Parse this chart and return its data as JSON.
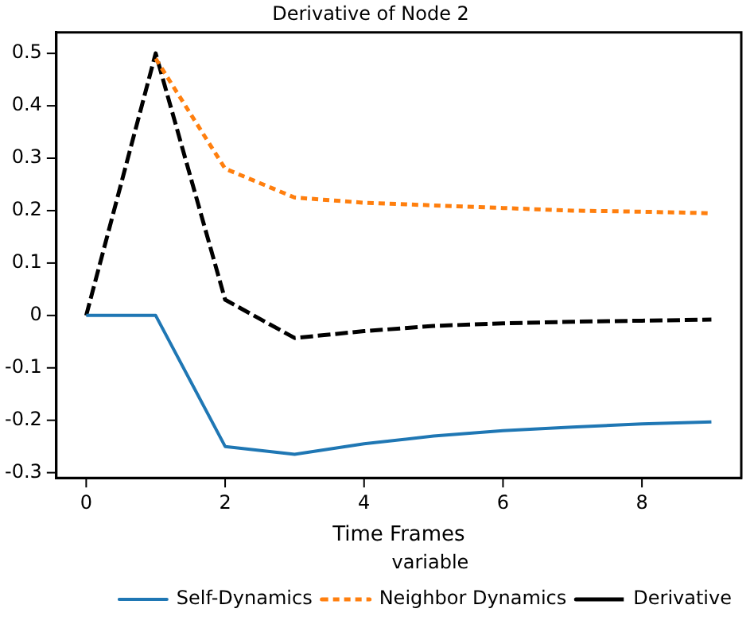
{
  "chart_data": {
    "type": "line",
    "title": "Derivative of Node 2",
    "xlabel": "Time Frames",
    "legend_title": "variable",
    "legend": "bottom right",
    "grid": false,
    "marker": "none",
    "x": [
      0,
      1,
      2,
      3,
      4,
      5,
      6,
      7,
      8,
      9
    ],
    "xlim": [
      -0.43,
      9.43
    ],
    "xticks": [
      0,
      2,
      4,
      6,
      8
    ],
    "ylim": [
      -0.31,
      0.54
    ],
    "yticks": [
      -0.3,
      -0.2,
      -0.1,
      0.0,
      0.1,
      0.2,
      0.3,
      0.4,
      0.5
    ],
    "series": [
      {
        "name": "Self-Dynamics",
        "color": "#1f77b4",
        "line_style": "solid",
        "values": [
          0,
          0,
          -0.25,
          -0.265,
          -0.245,
          -0.23,
          -0.22,
          -0.213,
          -0.207,
          -0.203
        ]
      },
      {
        "name": "Neighbor Dynamics",
        "color": "#ff7f0e",
        "line_style": "dotted",
        "values": [
          null,
          0.49,
          0.28,
          0.225,
          0.215,
          0.21,
          0.205,
          0.2,
          0.198,
          0.195
        ]
      },
      {
        "name": "Derivative",
        "color": "#000000",
        "line_style": "dashed",
        "values": [
          0,
          0.5,
          0.03,
          -0.043,
          -0.03,
          -0.02,
          -0.015,
          -0.012,
          -0.01,
          -0.008
        ]
      }
    ]
  }
}
